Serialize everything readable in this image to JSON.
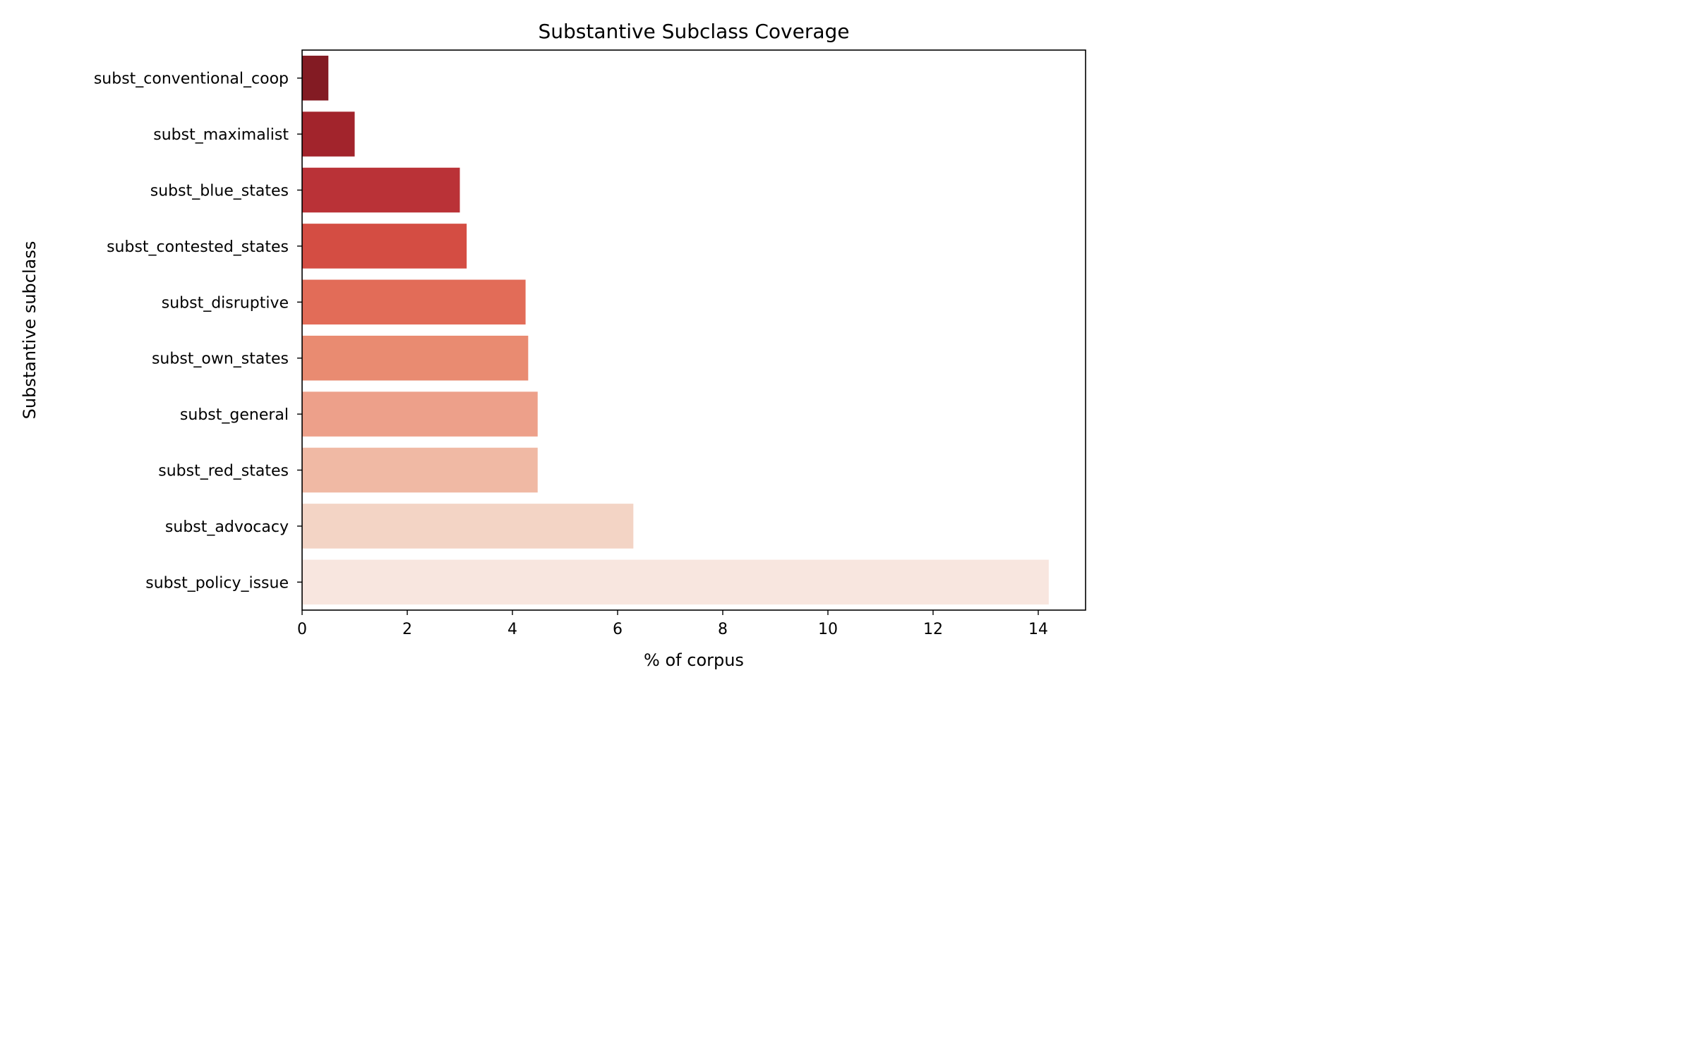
{
  "chart_data": {
    "type": "bar",
    "orientation": "horizontal",
    "title": "Substantive Subclass Coverage",
    "xlabel": "% of corpus",
    "ylabel": "Substantive subclass",
    "xlim": [
      0,
      14.9
    ],
    "xticks": [
      0,
      2,
      4,
      6,
      8,
      10,
      12,
      14
    ],
    "grid": false,
    "categories": [
      "subst_conventional_coop",
      "subst_maximalist",
      "subst_blue_states",
      "subst_contested_states",
      "subst_disruptive",
      "subst_own_states",
      "subst_general",
      "subst_red_states",
      "subst_advocacy",
      "subst_policy_issue"
    ],
    "values": [
      0.5,
      1.0,
      3.0,
      3.13,
      4.25,
      4.3,
      4.48,
      4.48,
      6.3,
      14.2
    ],
    "colors": [
      "#831b23",
      "#a2242c",
      "#ba3237",
      "#d44d43",
      "#e26c58",
      "#e98b71",
      "#eda08a",
      "#f0b9a4",
      "#f3d4c5",
      "#f8e6df"
    ]
  }
}
